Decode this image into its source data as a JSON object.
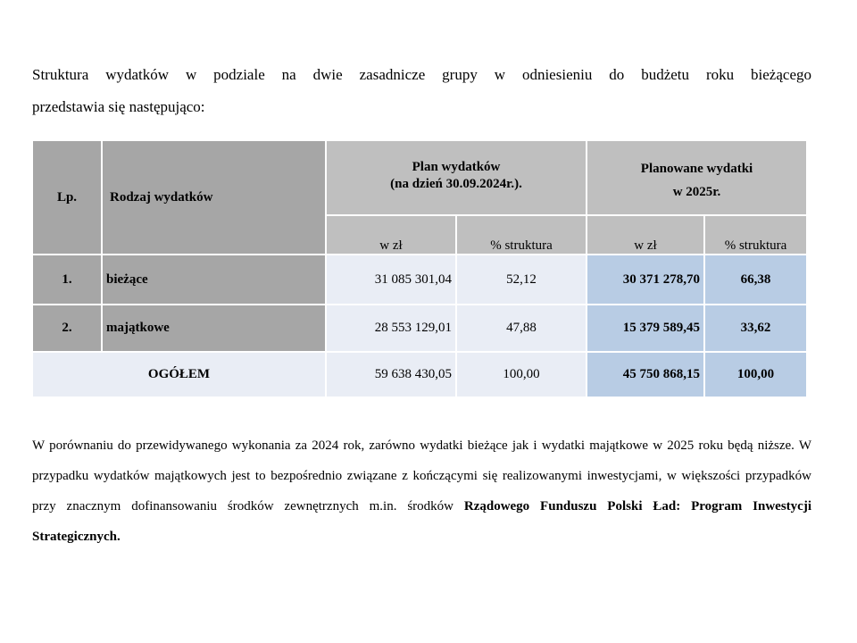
{
  "intro": {
    "line1": "Struktura wydatków w podziale na dwie zasadnicze grupy w odniesieniu do budżetu roku bieżącego",
    "line2": "przedstawia się następująco:"
  },
  "table": {
    "headers": {
      "lp": "Lp.",
      "rodzaj": "Rodzaj wydatków",
      "plan_line1": "Plan wydatków",
      "plan_line2": "(na dzień 30.09.2024r.).",
      "planowane_line1": "Planowane wydatki",
      "planowane_line2": "w 2025r.",
      "wzl": "w zł",
      "struktura": "%  struktura"
    },
    "rows": [
      {
        "lp": "1.",
        "name": "bieżące",
        "plan_zl": "31 085 301,04",
        "plan_pct": "52,12",
        "new_zl": "30 371 278,70",
        "new_pct": "66,38"
      },
      {
        "lp": "2.",
        "name": "majątkowe",
        "plan_zl": "28 553 129,01",
        "plan_pct": "47,88",
        "new_zl": "15 379 589,45",
        "new_pct": "33,62"
      }
    ],
    "total": {
      "label": "OGÓŁEM",
      "plan_zl": "59 638 430,05",
      "plan_pct": "100,00",
      "new_zl": "45 750 868,15",
      "new_pct": "100,00"
    }
  },
  "summary": {
    "text": "W porównaniu do przewidywanego wykonania za 2024 rok, zarówno wydatki bieżące jak i wydatki majątkowe w 2025 roku będą niższe. W przypadku wydatków majątkowych jest to bezpośrednio związane z kończącymi się realizowanymi inwestycjami, w większości przypadków przy znacznym dofinansowaniu  środków zewnętrznych m.in. środków ",
    "bold": "Rządowego Funduszu Polski Ład: Program Inwestycji Strategicznych."
  },
  "colors": {
    "header_dark": "#a6a6a6",
    "header": "#bfbfbf",
    "cell_light": "#e9edf5",
    "cell_blue": "#b8cce4"
  }
}
